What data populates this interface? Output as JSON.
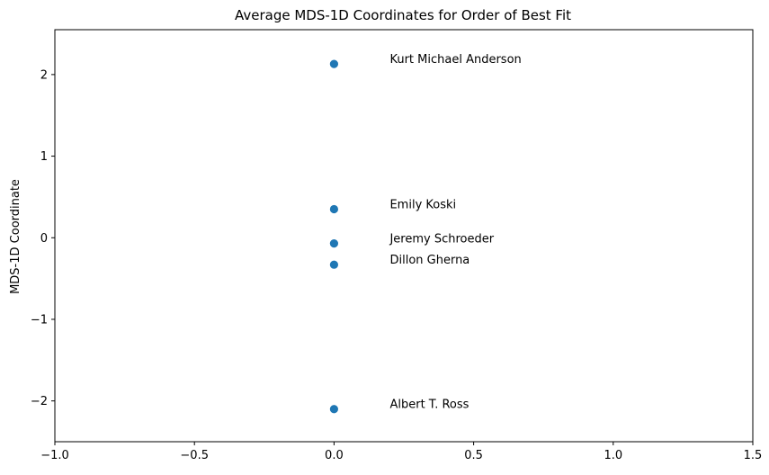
{
  "chart_data": {
    "type": "scatter",
    "title": "Average MDS-1D Coordinates for Order of Best Fit",
    "xlabel": "",
    "ylabel": "MDS-1D Coordinate",
    "xlim": [
      -1.0,
      1.5
    ],
    "ylim": [
      -2.5,
      2.55
    ],
    "xticks": [
      -1.0,
      -0.5,
      0.0,
      0.5,
      1.0,
      1.5
    ],
    "xtick_labels": [
      "−1.0",
      "−0.5",
      "0.0",
      "0.5",
      "1.0",
      "1.5"
    ],
    "yticks": [
      -2,
      -1,
      0,
      1,
      2
    ],
    "ytick_labels": [
      "−2",
      "−1",
      "0",
      "1",
      "2"
    ],
    "grid": false,
    "marker_color": "#1f77b4",
    "points": [
      {
        "x": 0.0,
        "y": 2.13,
        "label": "Kurt Michael Anderson"
      },
      {
        "x": 0.0,
        "y": 0.35,
        "label": "Emily Koski"
      },
      {
        "x": 0.0,
        "y": -0.07,
        "label": "Jeremy Schroeder"
      },
      {
        "x": 0.0,
        "y": -0.33,
        "label": "Dillon Gherna"
      },
      {
        "x": 0.0,
        "y": -2.1,
        "label": "Albert T. Ross"
      }
    ]
  }
}
